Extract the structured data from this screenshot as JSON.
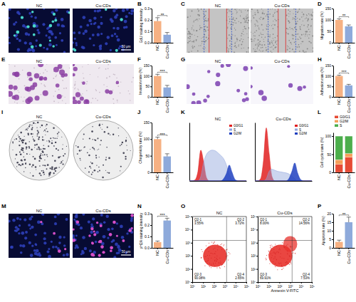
{
  "chart_data": [
    {
      "type": "bar",
      "title": "B",
      "y_label": "EdU staining intensity",
      "categories": [
        "NC",
        "Cu-CDs"
      ],
      "values": [
        0.19,
        0.07
      ],
      "errors": [
        0.03,
        0.02
      ],
      "colors": [
        "#f6b183",
        "#8eaadb"
      ],
      "ylim": [
        0,
        0.3
      ],
      "yticks": [
        {
          "value": 0,
          "label": "0.0"
        },
        0.1,
        0.2,
        0.3
      ],
      "annotations": [
        "**"
      ]
    },
    {
      "type": "bar",
      "title": "D",
      "y_label": "Migration rate (%)",
      "categories": [
        "NC",
        "Cu-CDs"
      ],
      "values": [
        100,
        72
      ],
      "errors": [
        5,
        6
      ],
      "colors": [
        "#f6b183",
        "#8eaadb"
      ],
      "ylim": [
        0,
        150
      ],
      "yticks": [
        0,
        50,
        100,
        150
      ],
      "annotations": [
        "**"
      ]
    },
    {
      "type": "bar",
      "title": "F",
      "y_label": "Invasion rate (%)",
      "categories": [
        "NC",
        "Cu-CDs"
      ],
      "values": [
        100,
        45
      ],
      "errors": [
        8,
        10
      ],
      "colors": [
        "#f6b183",
        "#8eaadb"
      ],
      "ylim": [
        0,
        150
      ],
      "yticks": [
        0,
        50,
        100,
        150
      ],
      "annotations": [
        "***"
      ]
    },
    {
      "type": "bar",
      "title": "H",
      "y_label": "Adhesion rate (%)",
      "categories": [
        "NC",
        "Cu-CDs"
      ],
      "values": [
        100,
        55
      ],
      "errors": [
        4,
        5
      ],
      "colors": [
        "#f6b183",
        "#8eaadb"
      ],
      "ylim": [
        0,
        150
      ],
      "yticks": [
        0,
        50,
        100,
        150
      ],
      "annotations": [
        "***"
      ]
    },
    {
      "type": "bar",
      "title": "J",
      "y_label": "Chogenicity rate (%)",
      "categories": [
        "NC",
        "Cu-CDs"
      ],
      "values": [
        100,
        48
      ],
      "errors": [
        6,
        8
      ],
      "colors": [
        "#f6b183",
        "#8eaadb"
      ],
      "ylim": [
        0,
        150
      ],
      "yticks": [
        0,
        50,
        100,
        150
      ],
      "annotations": [
        "***"
      ]
    },
    {
      "type": "area",
      "title": "K",
      "subtitle": "NC",
      "x": [
        0,
        1,
        2,
        3,
        4,
        5,
        6,
        7,
        8,
        9,
        10,
        11,
        12,
        13,
        14,
        15,
        16,
        17,
        18,
        19,
        20
      ],
      "xlim": [
        0,
        20
      ],
      "ylim": [
        0,
        1.1
      ],
      "tick_labels": false,
      "legend": "top-right",
      "series": [
        {
          "name": "G0/G1",
          "color": "#e02020",
          "values": [
            0,
            0,
            0.02,
            0.18,
            0.58,
            0.36,
            0.06,
            0,
            0,
            0,
            0,
            0,
            0,
            0,
            0,
            0,
            0,
            0,
            0,
            0,
            0
          ]
        },
        {
          "name": "S",
          "color": "#8fa3dc",
          "values": [
            0,
            0,
            0,
            0,
            0.08,
            0.35,
            0.5,
            0.56,
            0.58,
            0.57,
            0.53,
            0.48,
            0.42,
            0.3,
            0.12,
            0.02,
            0,
            0,
            0,
            0,
            0
          ]
        },
        {
          "name": "G2/M",
          "color": "#1f3fbf",
          "values": [
            0,
            0,
            0,
            0,
            0,
            0,
            0,
            0,
            0,
            0,
            0,
            0,
            0.04,
            0.14,
            0.3,
            0.16,
            0.03,
            0,
            0,
            0,
            0
          ]
        }
      ]
    },
    {
      "type": "area",
      "subtitle": "Cu-CDs",
      "x": [
        0,
        1,
        2,
        3,
        4,
        5,
        6,
        7,
        8,
        9,
        10,
        11,
        12,
        13,
        14,
        15,
        16,
        17,
        18,
        19,
        20
      ],
      "xlim": [
        0,
        20
      ],
      "ylim": [
        0,
        1.1
      ],
      "tick_labels": false,
      "legend": "top-right",
      "series": [
        {
          "name": "G0/G1",
          "color": "#e02020",
          "values": [
            0,
            0,
            0.04,
            0.38,
            1.0,
            0.52,
            0.08,
            0,
            0,
            0,
            0,
            0,
            0,
            0,
            0,
            0,
            0,
            0,
            0,
            0,
            0
          ]
        },
        {
          "name": "S",
          "color": "#8fa3dc",
          "values": [
            0,
            0,
            0,
            0,
            0.04,
            0.18,
            0.22,
            0.2,
            0.18,
            0.17,
            0.16,
            0.15,
            0.13,
            0.09,
            0.04,
            0,
            0,
            0,
            0,
            0,
            0
          ]
        },
        {
          "name": "G2/M",
          "color": "#1f3fbf",
          "values": [
            0,
            0,
            0,
            0,
            0,
            0,
            0,
            0,
            0,
            0,
            0,
            0,
            0.05,
            0.18,
            0.34,
            0.15,
            0.03,
            0,
            0,
            0,
            0
          ]
        }
      ]
    },
    {
      "type": "bar",
      "stacked": true,
      "title": "L",
      "y_label": "Cell cycle rates (%)",
      "categories": [
        "NC",
        "Cu-CDs"
      ],
      "legend": "top",
      "ylim": [
        0,
        110
      ],
      "yticks": [
        0,
        50,
        100
      ],
      "series": [
        {
          "name": "G0/G1",
          "color": "#e64b35",
          "values": [
            22,
            42
          ]
        },
        {
          "name": "G2/M",
          "color": "#f5a05a",
          "values": [
            13,
            10
          ]
        },
        {
          "name": "S",
          "color": "#4cae4c",
          "values": [
            65,
            48
          ]
        }
      ]
    },
    {
      "type": "bar",
      "title": "N",
      "y_label": "γH2A staining intensity",
      "categories": [
        "NC",
        "Cu-CDs"
      ],
      "values": [
        0.05,
        0.24
      ],
      "errors": [
        0.01,
        0.02
      ],
      "colors": [
        "#f6b183",
        "#8eaadb"
      ],
      "ylim": [
        0,
        0.3
      ],
      "yticks": [
        {
          "value": 0,
          "label": "0.0"
        },
        0.1,
        0.2,
        0.3
      ],
      "annotations": [
        "***"
      ]
    },
    {
      "type": "scatter",
      "title": "O",
      "subtitle": "NC",
      "log": true,
      "xlim": [
        1,
        100000
      ],
      "ylim": [
        1,
        100000
      ],
      "xticks": [
        {
          "value": 1,
          "label": "10⁰"
        },
        {
          "value": 10,
          "label": "10¹"
        },
        {
          "value": 100,
          "label": "10²"
        },
        {
          "value": 1000,
          "label": "10³"
        },
        {
          "value": 10000,
          "label": "10⁴"
        },
        {
          "value": 100000,
          "label": "10⁵"
        }
      ],
      "yticks": [
        {
          "value": 1,
          "label": "10⁰"
        },
        {
          "value": 10,
          "label": "10¹"
        },
        {
          "value": 100,
          "label": "10²"
        },
        {
          "value": 1000,
          "label": "10³"
        },
        {
          "value": 10000,
          "label": "10⁴"
        },
        {
          "value": 100000,
          "label": "10⁵"
        }
      ],
      "gate": [
        1500,
        1500
      ],
      "quadrant_names": [
        "Q2-1",
        "Q2-2",
        "Q2-3",
        "Q2-4"
      ],
      "values": [
        3.55,
        3.72,
        90.08,
        2.65
      ],
      "value_labels": [
        "3.55%",
        "3.72%",
        "90.08%",
        "2.65%"
      ]
    },
    {
      "type": "scatter",
      "subtitle": "Cu-CDs",
      "x_label": "Annexin V-FITC",
      "log": true,
      "xlim": [
        1,
        100000
      ],
      "ylim": [
        1,
        100000
      ],
      "xticks": [
        {
          "value": 1,
          "label": "10⁰"
        },
        {
          "value": 10,
          "label": "10¹"
        },
        {
          "value": 100,
          "label": "10²"
        },
        {
          "value": 1000,
          "label": "10³"
        },
        {
          "value": 10000,
          "label": "10⁴"
        },
        {
          "value": 100000,
          "label": "10⁵"
        }
      ],
      "yticks": [
        {
          "value": 1,
          "label": "10⁰"
        },
        {
          "value": 10,
          "label": "10¹"
        },
        {
          "value": 100,
          "label": "10²"
        },
        {
          "value": 1000,
          "label": "10³"
        },
        {
          "value": 10000,
          "label": "10⁴"
        },
        {
          "value": 100000,
          "label": "10⁵"
        }
      ],
      "gate": [
        1500,
        1500
      ],
      "quadrant_names": [
        "Q2-1",
        "Q2-2",
        "Q2-3",
        "Q2-4"
      ],
      "values": [
        8.0,
        14.56,
        69.91,
        7.53
      ],
      "value_labels": [
        "8.00%",
        "14.56%",
        "69.91%",
        "7.53%"
      ]
    },
    {
      "type": "bar",
      "title": "P",
      "y_label": "Apoptosis rate (%)",
      "categories": [
        "NC",
        "Cu-CDs"
      ],
      "values": [
        3.5,
        15
      ],
      "errors": [
        1,
        3
      ],
      "colors": [
        "#f6b183",
        "#8eaadb"
      ],
      "ylim": [
        0,
        20
      ],
      "yticks": [
        0,
        5,
        10,
        15,
        20
      ],
      "annotations": [
        "**"
      ]
    }
  ],
  "images": [
    {
      "label": "A",
      "titles": [
        "NC",
        "Cu-CDs"
      ],
      "scale_bar": "50 μm"
    },
    {
      "label": "C",
      "titles": [
        "NC",
        "Cu-CDs"
      ]
    },
    {
      "label": "E",
      "titles": [
        "NC",
        "Cu-CDs"
      ]
    },
    {
      "label": "G",
      "titles": [
        "NC",
        "Cu-CDs"
      ]
    },
    {
      "label": "I",
      "titles": [
        "NC",
        "Cu-CDs"
      ]
    },
    {
      "label": "M",
      "titles": [
        "NC",
        "Cu-CDs"
      ],
      "scale_bar": "50 μm"
    }
  ]
}
